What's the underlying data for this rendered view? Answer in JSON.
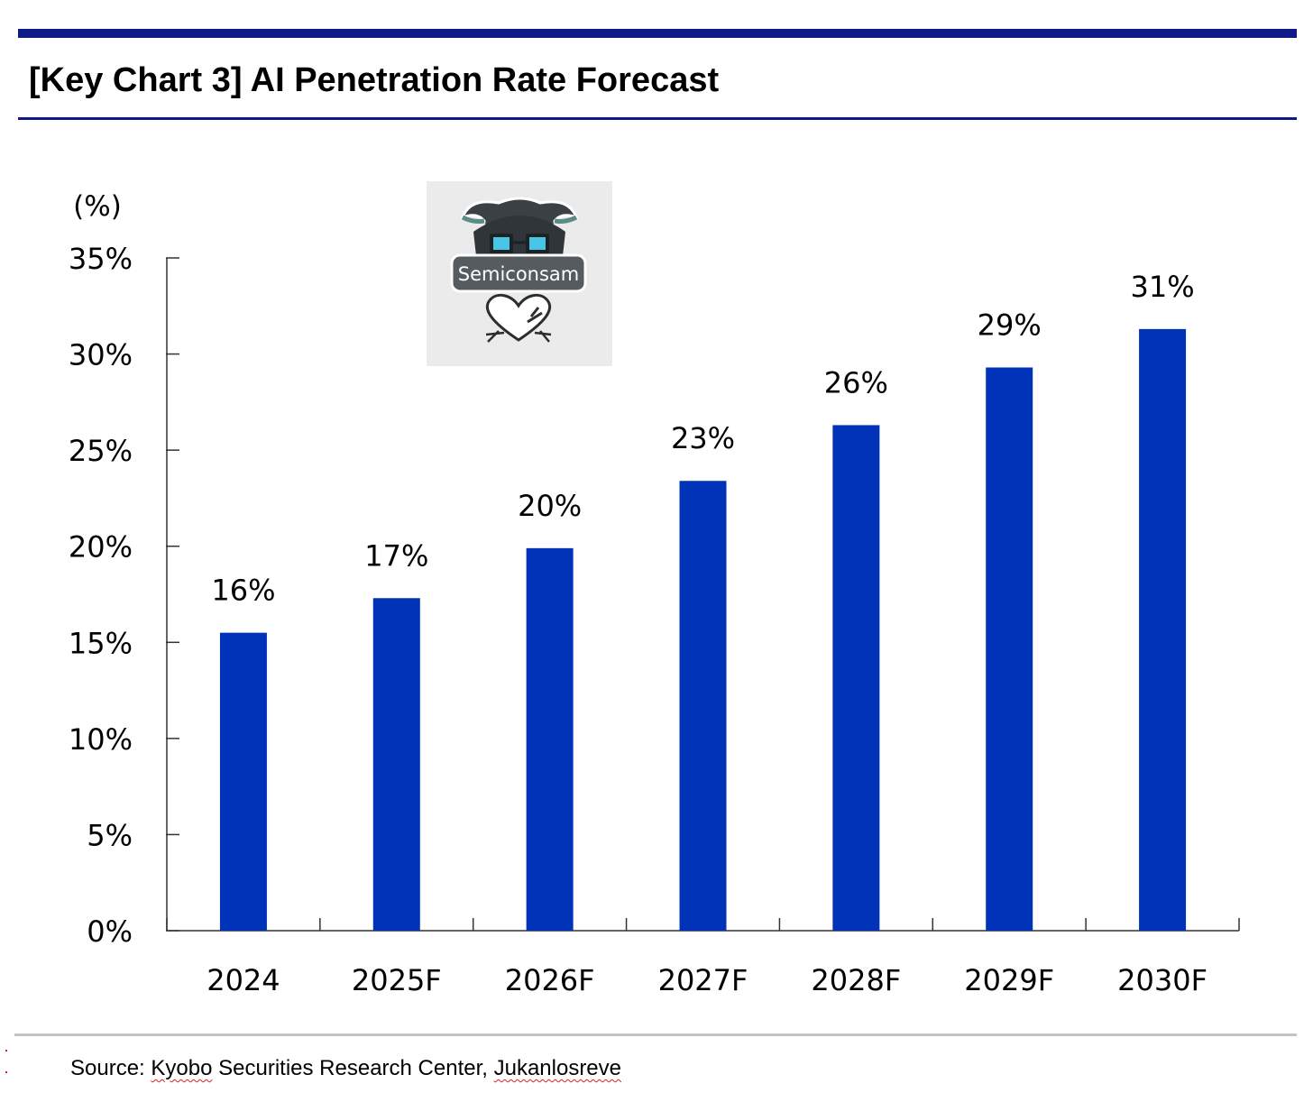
{
  "header": {
    "title": "[Key Chart 3] AI Penetration Rate Forecast"
  },
  "watermark": {
    "label": "Semiconsam"
  },
  "footer": {
    "prefix": "Source: ",
    "source_name": "Kyobo",
    "middle": " Securities Research Center, ",
    "author": "Jukanlosreve"
  },
  "colors": {
    "bar": "#0033b8",
    "rule": "#0f1a8a",
    "axis": "#333333"
  },
  "chart_data": {
    "type": "bar",
    "title": "",
    "xlabel": "",
    "ylabel": "(%)",
    "ylim": [
      0,
      35
    ],
    "yticks": [
      0,
      5,
      10,
      15,
      20,
      25,
      30,
      35
    ],
    "ytick_labels": [
      "0%",
      "5%",
      "10%",
      "15%",
      "20%",
      "25%",
      "30%",
      "35%"
    ],
    "categories": [
      "2024",
      "2025F",
      "2026F",
      "2027F",
      "2028F",
      "2029F",
      "2030F"
    ],
    "values": [
      15.5,
      17.3,
      19.9,
      23.4,
      26.3,
      29.3,
      31.3
    ],
    "data_labels": [
      "16%",
      "17%",
      "20%",
      "23%",
      "26%",
      "29%",
      "31%"
    ],
    "grid": false,
    "legend": "none"
  }
}
